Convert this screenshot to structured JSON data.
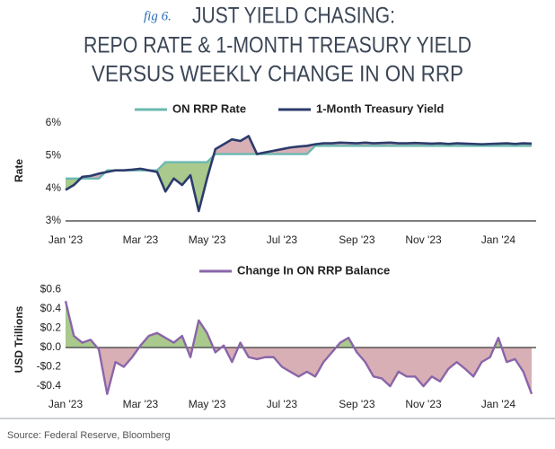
{
  "header": {
    "figure_label": "fig 6.",
    "title_lines": [
      "JUST YIELD CHASING:",
      "REPO RATE & 1-MONTH TREASURY YIELD",
      "VERSUS WEEKLY CHANGE IN ON RRP"
    ]
  },
  "source": "Source: Federal Reserve, Bloomberg",
  "chart_data": [
    {
      "type": "line",
      "y_label": "Rate",
      "categories": [
        "Jan '23",
        null,
        null,
        null,
        null,
        null,
        null,
        null,
        null,
        "Mar '23",
        null,
        null,
        null,
        null,
        null,
        null,
        null,
        "May '23",
        null,
        null,
        null,
        null,
        null,
        null,
        null,
        null,
        "Jul '23",
        null,
        null,
        null,
        null,
        null,
        null,
        null,
        null,
        "Sep '23",
        null,
        null,
        null,
        null,
        null,
        null,
        null,
        "Nov '23",
        null,
        null,
        null,
        null,
        null,
        null,
        null,
        null,
        "Jan '24",
        null,
        null,
        null,
        null
      ],
      "series": [
        {
          "name": "ON RRP Rate",
          "color": "#6cb9b1",
          "values": [
            4.3,
            4.3,
            4.3,
            4.3,
            4.3,
            4.55,
            4.55,
            4.55,
            4.55,
            4.55,
            4.55,
            4.55,
            4.8,
            4.8,
            4.8,
            4.8,
            4.8,
            4.8,
            5.05,
            5.05,
            5.05,
            5.05,
            5.05,
            5.05,
            5.05,
            5.05,
            5.05,
            5.05,
            5.05,
            5.05,
            5.3,
            5.3,
            5.3,
            5.3,
            5.3,
            5.3,
            5.3,
            5.3,
            5.3,
            5.3,
            5.3,
            5.3,
            5.3,
            5.3,
            5.3,
            5.3,
            5.3,
            5.3,
            5.3,
            5.3,
            5.3,
            5.3,
            5.3,
            5.3,
            5.3,
            5.3,
            5.3
          ]
        },
        {
          "name": "1-Month Treasury Yield",
          "color": "#2c3b6c",
          "values": [
            3.95,
            4.1,
            4.35,
            4.38,
            4.45,
            4.5,
            4.55,
            4.55,
            4.57,
            4.6,
            4.55,
            4.5,
            3.9,
            4.3,
            4.1,
            4.4,
            3.3,
            4.3,
            5.2,
            5.35,
            5.5,
            5.45,
            5.6,
            5.05,
            5.1,
            5.15,
            5.2,
            5.25,
            5.28,
            5.3,
            5.35,
            5.38,
            5.38,
            5.4,
            5.39,
            5.38,
            5.4,
            5.38,
            5.39,
            5.4,
            5.38,
            5.38,
            5.39,
            5.38,
            5.37,
            5.38,
            5.36,
            5.38,
            5.37,
            5.36,
            5.35,
            5.36,
            5.37,
            5.38,
            5.36,
            5.38,
            5.37
          ]
        }
      ],
      "fill_colors": [
        "#a9c98d",
        "#d8afb5"
      ],
      "ylim": [
        3,
        6
      ],
      "yticks": [
        {
          "value": 3,
          "label": "3%"
        },
        {
          "value": 4,
          "label": "4%"
        },
        {
          "value": 5,
          "label": "5%"
        },
        {
          "value": 6,
          "label": "6%"
        }
      ]
    },
    {
      "type": "line",
      "y_label": "USD Trillions",
      "categories": [
        "Jan '23",
        null,
        null,
        null,
        null,
        null,
        null,
        null,
        null,
        "Mar '23",
        null,
        null,
        null,
        null,
        null,
        null,
        null,
        "May '23",
        null,
        null,
        null,
        null,
        null,
        null,
        null,
        null,
        "Jul '23",
        null,
        null,
        null,
        null,
        null,
        null,
        null,
        null,
        "Sep '23",
        null,
        null,
        null,
        null,
        null,
        null,
        null,
        "Nov '23",
        null,
        null,
        null,
        null,
        null,
        null,
        null,
        null,
        "Jan '24",
        null,
        null,
        null,
        null
      ],
      "series": [
        {
          "name": "Change In ON RRP Balance",
          "color": "#8a65a9",
          "values": [
            0.48,
            0.12,
            0.05,
            0.08,
            -0.02,
            -0.48,
            -0.15,
            -0.2,
            -0.1,
            0.02,
            0.12,
            0.15,
            0.1,
            0.05,
            0.12,
            -0.1,
            0.28,
            0.15,
            -0.05,
            0.02,
            -0.15,
            0.05,
            -0.1,
            -0.12,
            -0.1,
            -0.1,
            -0.2,
            -0.25,
            -0.3,
            -0.25,
            -0.3,
            -0.15,
            -0.05,
            0.05,
            0.1,
            -0.05,
            -0.15,
            -0.3,
            -0.32,
            -0.4,
            -0.25,
            -0.3,
            -0.3,
            -0.4,
            -0.3,
            -0.35,
            -0.22,
            -0.15,
            -0.22,
            -0.3,
            -0.15,
            -0.1,
            0.1,
            -0.15,
            -0.12,
            -0.25,
            -0.48
          ]
        }
      ],
      "fill_colors": [
        "#a9c98d",
        "#d8afb5"
      ],
      "ylim": [
        -0.52,
        0.64
      ],
      "yticks": [
        {
          "value": 0.6,
          "label": "$0.6"
        },
        {
          "value": 0.4,
          "label": "$0.4"
        },
        {
          "value": 0.2,
          "label": "$0.2"
        },
        {
          "value": 0,
          "label": "$0.0"
        },
        {
          "value": -0.2,
          "label": "-$0.2"
        },
        {
          "value": -0.4,
          "label": "-$0.4"
        }
      ]
    }
  ]
}
